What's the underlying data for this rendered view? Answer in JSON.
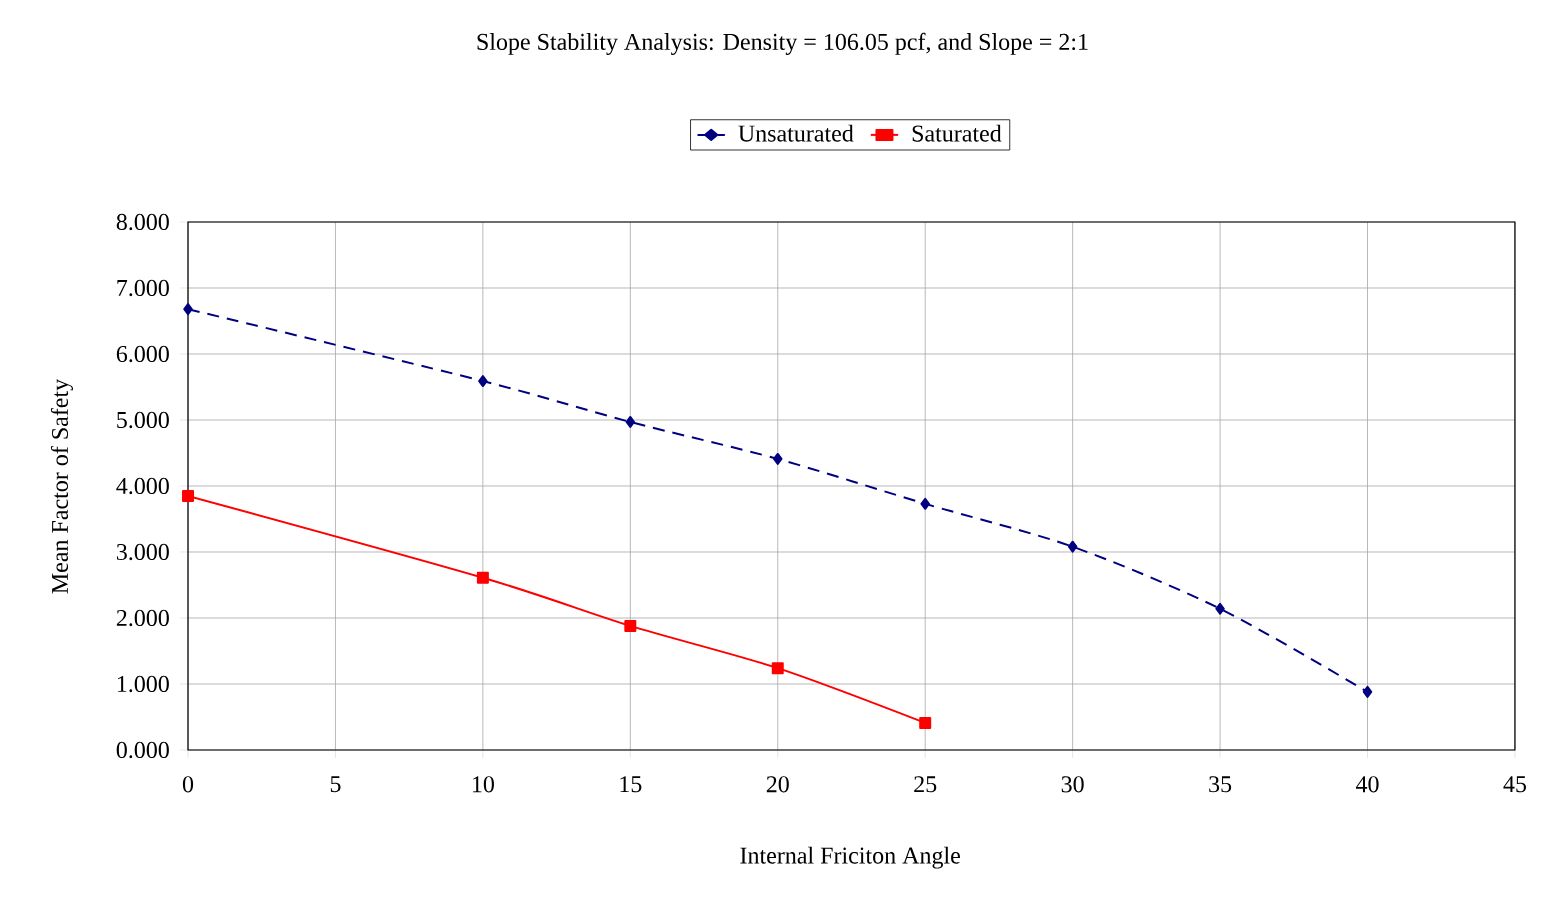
{
  "chart_data": {
    "type": "line",
    "title": "Slope Stability Analysis: Density = 106.05 pcf, and Slope = 2:1",
    "xlabel": "Internal Friciton Angle",
    "ylabel": "Mean Factor of Safety",
    "series": [
      {
        "name": "Unsaturated",
        "color": "#000080",
        "marker": "diamond",
        "line_style": "dashed",
        "x": [
          0,
          10,
          15,
          20,
          25,
          30,
          35,
          40
        ],
        "values": [
          6.68,
          5.59,
          4.97,
          4.41,
          3.73,
          3.08,
          2.14,
          0.88
        ]
      },
      {
        "name": "Saturated",
        "color": "#ff0000",
        "marker": "square",
        "line_style": "solid",
        "x": [
          0,
          10,
          15,
          20,
          25
        ],
        "values": [
          3.85,
          2.61,
          1.88,
          1.24,
          0.41
        ]
      }
    ],
    "xlim": [
      0,
      45
    ],
    "xticks": [
      0,
      5,
      10,
      15,
      20,
      25,
      30,
      35,
      40,
      45
    ],
    "ylim": [
      0,
      8
    ],
    "yticks": [
      {
        "value": 0,
        "label": "0.000"
      },
      {
        "value": 1,
        "label": "1.000"
      },
      {
        "value": 2,
        "label": "2.000"
      },
      {
        "value": 3,
        "label": "3.000"
      },
      {
        "value": 4,
        "label": "4.000"
      },
      {
        "value": 5,
        "label": "5.000"
      },
      {
        "value": 6,
        "label": "6.000"
      },
      {
        "value": 7,
        "label": "7.000"
      },
      {
        "value": 8,
        "label": "8.000"
      }
    ],
    "grid": true,
    "legend": "top"
  }
}
